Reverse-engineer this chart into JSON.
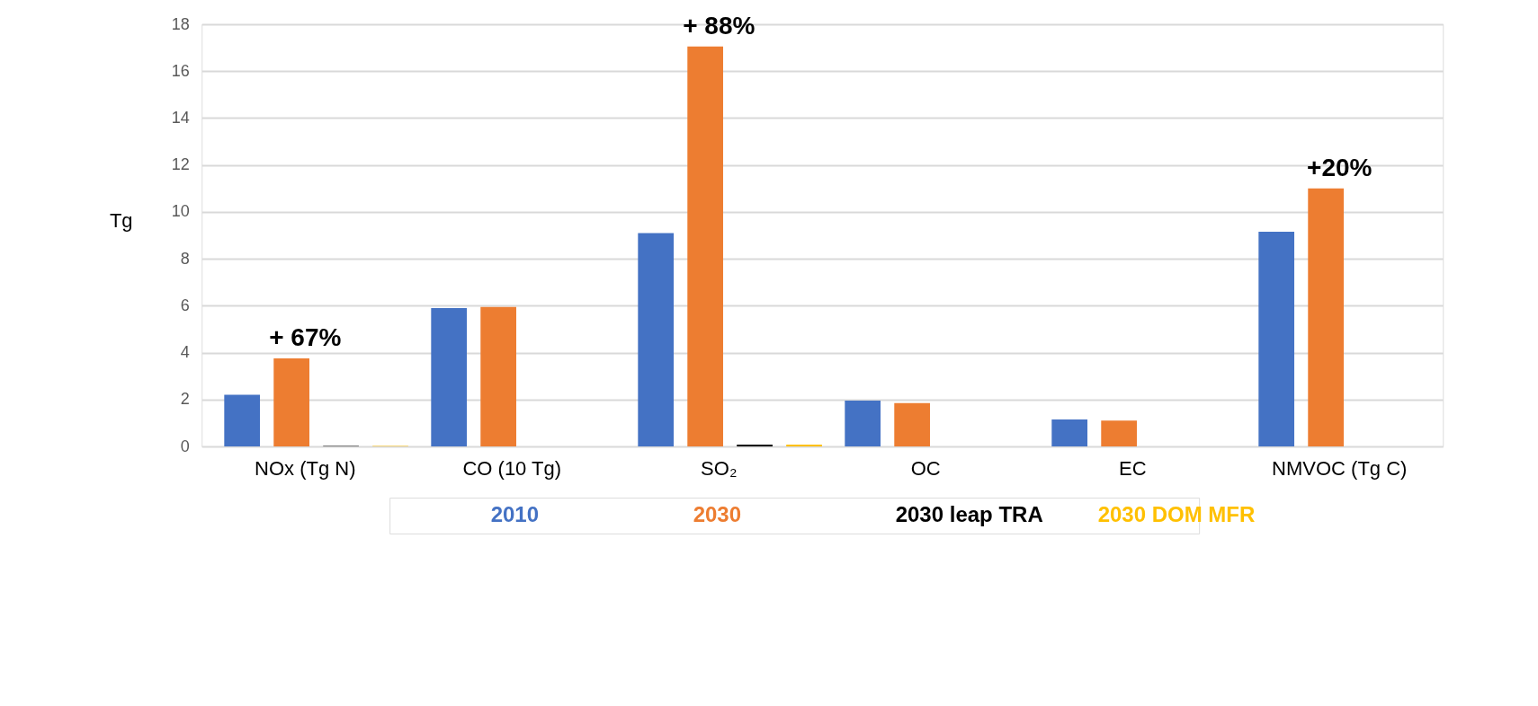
{
  "chart_data": {
    "type": "bar",
    "ylabel": "Tg",
    "categories": [
      "NOx (Tg N)",
      "CO (10 Tg)",
      "SO₂",
      "OC",
      "EC",
      "NMVOC (Tg C)"
    ],
    "series": [
      {
        "name": "2010",
        "color": "#4472c4",
        "values": [
          2.2,
          5.9,
          9.1,
          1.95,
          1.15,
          9.15
        ]
      },
      {
        "name": "2030",
        "color": "#ed7d31",
        "values": [
          3.75,
          5.95,
          17.05,
          1.85,
          1.1,
          11.0
        ]
      },
      {
        "name": "2030 leap TRA",
        "color": "#000000",
        "values": [
          0.02,
          null,
          0.08,
          null,
          null,
          null
        ]
      },
      {
        "name": "2030 DOM MFR",
        "color": "#ffc000",
        "values": [
          0.02,
          null,
          0.08,
          null,
          null,
          null
        ]
      }
    ],
    "ylim": [
      0,
      18
    ],
    "yticks": [
      0,
      2,
      4,
      6,
      8,
      10,
      12,
      14,
      16,
      18
    ],
    "grid": "y",
    "legend": "bottom",
    "annotations": [
      {
        "text": "+ 67%",
        "x": "NOx (Tg N)",
        "y": 3.75
      },
      {
        "text": "+ 88%",
        "x": "SO₂",
        "y": 17.05
      },
      {
        "text": "+20%",
        "x": "NMVOC (Tg C)",
        "y": 11.0
      }
    ]
  }
}
